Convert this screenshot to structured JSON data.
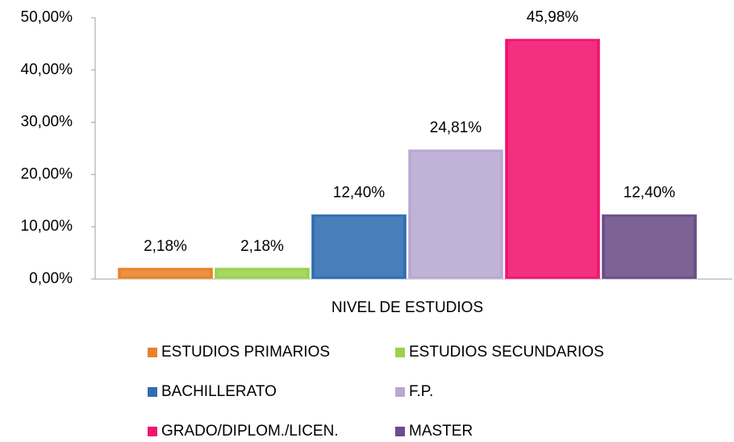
{
  "chart_data": {
    "type": "bar",
    "categories": [
      "NIVEL DE ESTUDIOS"
    ],
    "series": [
      {
        "name": "ESTUDIOS PRIMARIOS",
        "color": "#e8822a",
        "values": [
          2.18
        ],
        "value_labels": [
          "2,18%"
        ]
      },
      {
        "name": "ESTUDIOS SECUNDARIOS",
        "color": "#9ad24c",
        "values": [
          2.18
        ],
        "value_labels": [
          "2,18%"
        ]
      },
      {
        "name": "BACHILLERATO",
        "color": "#2f6db1",
        "values": [
          12.4
        ],
        "value_labels": [
          "12,40%"
        ]
      },
      {
        "name": "F.P.",
        "color": "#b9a8d2",
        "values": [
          24.81
        ],
        "value_labels": [
          "24,81%"
        ]
      },
      {
        "name": "GRADO/DIPLOM./LICEN.",
        "color": "#f2146f",
        "values": [
          45.98
        ],
        "value_labels": [
          "45,98%"
        ]
      },
      {
        "name": "MASTER",
        "color": "#6b4d87",
        "values": [
          12.4
        ],
        "value_labels": [
          "12,40%"
        ]
      }
    ],
    "ylim": [
      0,
      50
    ],
    "yticks": [
      {
        "value": 0,
        "label": "0,00%"
      },
      {
        "value": 10,
        "label": "10,00%"
      },
      {
        "value": 20,
        "label": "20,00%"
      },
      {
        "value": 30,
        "label": "30,00%"
      },
      {
        "value": 40,
        "label": "40,00%"
      },
      {
        "value": 50,
        "label": "50,00%"
      }
    ],
    "grid": false,
    "legend": "bottom"
  }
}
